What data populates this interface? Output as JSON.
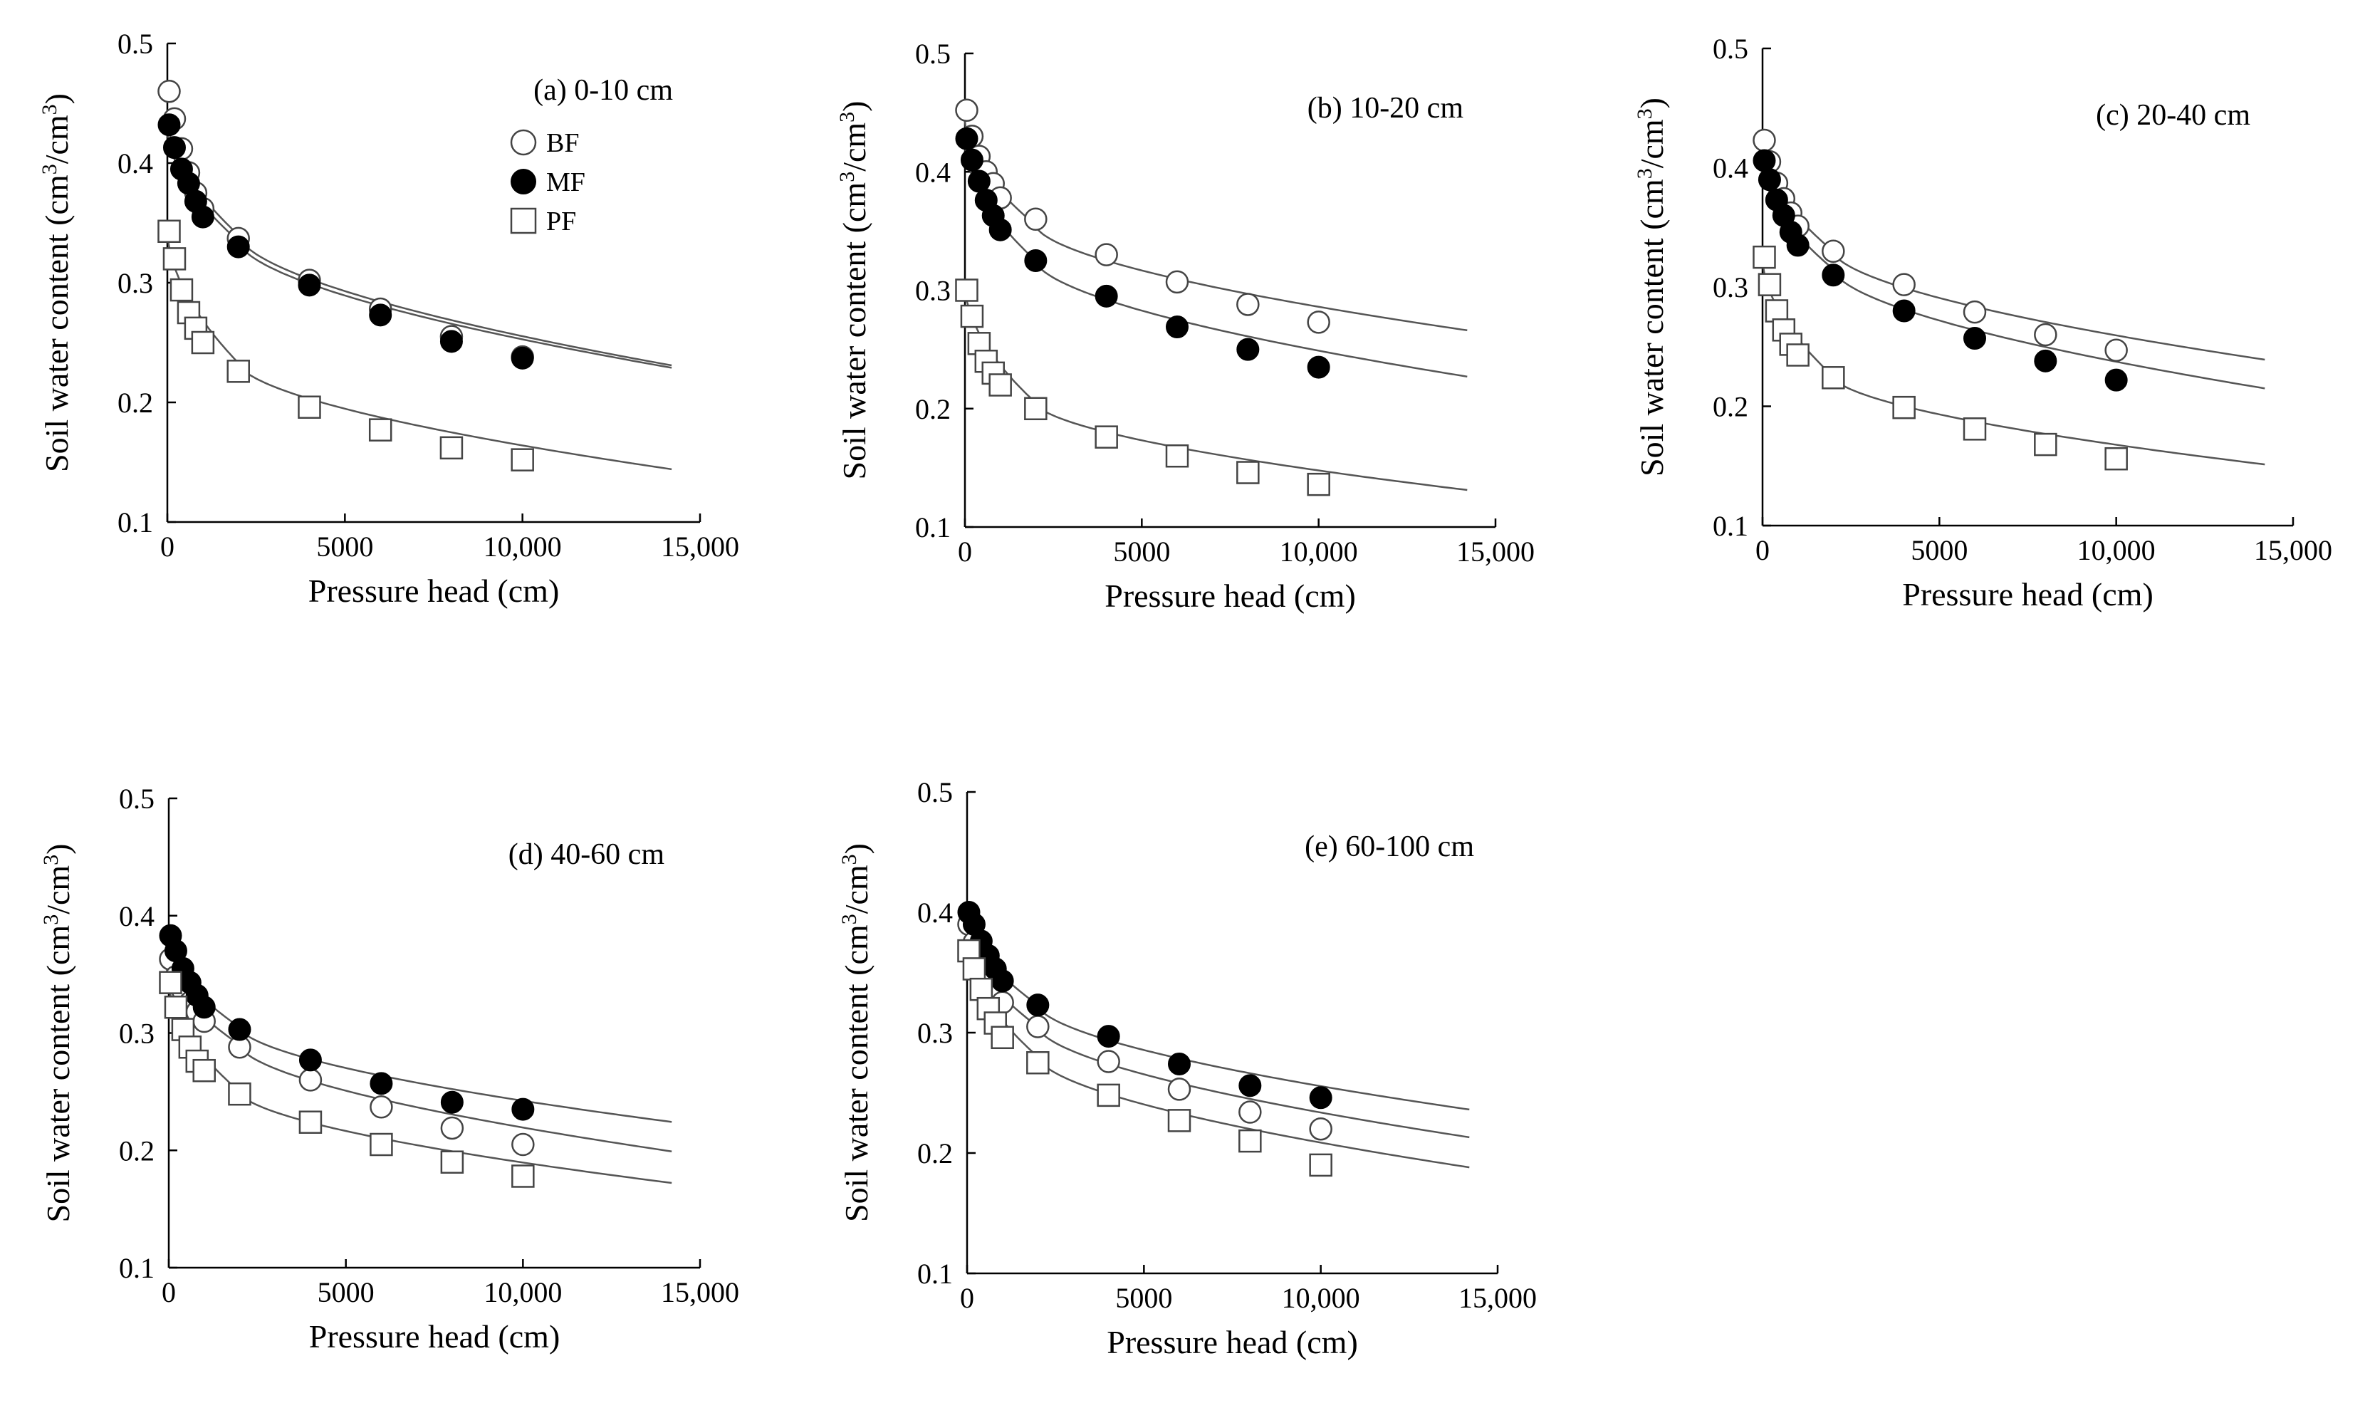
{
  "chart_data": [
    {
      "type": "scatter",
      "panel_label": "(a) 0-10 cm",
      "xlabel": "Pressure head (cm)",
      "ylabel_parts": [
        "Soil water content (cm",
        "3",
        "/cm",
        "3",
        ")"
      ],
      "xlim": [
        0,
        15000
      ],
      "ylim": [
        0.1,
        0.5
      ],
      "xticks": [
        0,
        5000,
        10000,
        15000
      ],
      "xtick_labels": [
        "0",
        "5000",
        "10,000",
        "15,000"
      ],
      "yticks": [
        0.1,
        0.2,
        0.3,
        0.4,
        0.5
      ],
      "ytick_labels": [
        "0.1",
        "0.2",
        "0.3",
        "0.4",
        "0.5"
      ],
      "legend": [
        {
          "name": "BF",
          "marker": "open-circle"
        },
        {
          "name": "MF",
          "marker": "filled-circle"
        },
        {
          "name": "PF",
          "marker": "open-square"
        }
      ],
      "series": [
        {
          "name": "BF",
          "marker": "open-circle",
          "x": [
            50,
            200,
            400,
            600,
            800,
            1000,
            2000,
            4000,
            6000,
            8000,
            10000
          ],
          "y": [
            0.46,
            0.437,
            0.412,
            0.392,
            0.375,
            0.362,
            0.337,
            0.302,
            0.278,
            0.255,
            0.238
          ],
          "fit": [
            0.44,
            0.34,
            0.232
          ]
        },
        {
          "name": "MF",
          "marker": "filled-circle",
          "x": [
            50,
            200,
            400,
            600,
            800,
            1000,
            2000,
            4000,
            6000,
            8000,
            10000
          ],
          "y": [
            0.432,
            0.413,
            0.395,
            0.383,
            0.368,
            0.355,
            0.33,
            0.298,
            0.273,
            0.251,
            0.237
          ],
          "fit": [
            0.43,
            0.335,
            0.23
          ]
        },
        {
          "name": "PF",
          "marker": "open-square",
          "x": [
            50,
            200,
            400,
            600,
            800,
            1000,
            2000,
            4000,
            6000,
            8000,
            10000
          ],
          "y": [
            0.343,
            0.32,
            0.294,
            0.275,
            0.262,
            0.25,
            0.226,
            0.196,
            0.177,
            0.162,
            0.152
          ],
          "fit": [
            0.345,
            0.233,
            0.145
          ]
        }
      ]
    },
    {
      "type": "scatter",
      "panel_label": "(b) 10-20 cm",
      "xlabel": "Pressure head (cm)",
      "ylabel_parts": [
        "Soil water content (cm",
        "3",
        "/cm",
        "3",
        ")"
      ],
      "xlim": [
        0,
        15000
      ],
      "ylim": [
        0.1,
        0.5
      ],
      "xticks": [
        0,
        5000,
        10000,
        15000
      ],
      "xtick_labels": [
        "0",
        "5000",
        "10,000",
        "15,000"
      ],
      "yticks": [
        0.1,
        0.2,
        0.3,
        0.4,
        0.5
      ],
      "ytick_labels": [
        "0.1",
        "0.2",
        "0.3",
        "0.4",
        "0.5"
      ],
      "legend": [],
      "series": [
        {
          "name": "BF",
          "marker": "open-circle",
          "x": [
            50,
            200,
            400,
            600,
            800,
            1000,
            2000,
            4000,
            6000,
            8000,
            10000
          ],
          "y": [
            0.452,
            0.43,
            0.413,
            0.4,
            0.39,
            0.378,
            0.36,
            0.33,
            0.307,
            0.288,
            0.273
          ],
          "fit": [
            0.445,
            0.355,
            0.267
          ]
        },
        {
          "name": "MF",
          "marker": "filled-circle",
          "x": [
            50,
            200,
            400,
            600,
            800,
            1000,
            2000,
            4000,
            6000,
            8000,
            10000
          ],
          "y": [
            0.428,
            0.41,
            0.392,
            0.376,
            0.363,
            0.351,
            0.325,
            0.295,
            0.269,
            0.25,
            0.235
          ],
          "fit": [
            0.425,
            0.325,
            0.228
          ]
        },
        {
          "name": "PF",
          "marker": "open-square",
          "x": [
            50,
            200,
            400,
            600,
            800,
            1000,
            2000,
            4000,
            6000,
            8000,
            10000
          ],
          "y": [
            0.3,
            0.278,
            0.255,
            0.24,
            0.23,
            0.22,
            0.2,
            0.176,
            0.16,
            0.146,
            0.136
          ],
          "fit": [
            0.305,
            0.205,
            0.132
          ]
        }
      ]
    },
    {
      "type": "scatter",
      "panel_label": "(c) 20-40 cm",
      "xlabel": "Pressure head (cm)",
      "ylabel_parts": [
        "Soil water content (cm",
        "3",
        "/cm",
        "3",
        ")"
      ],
      "xlim": [
        0,
        15000
      ],
      "ylim": [
        0.1,
        0.5
      ],
      "xticks": [
        0,
        5000,
        10000,
        15000
      ],
      "xtick_labels": [
        "0",
        "5000",
        "10,000",
        "15,000"
      ],
      "yticks": [
        0.1,
        0.2,
        0.3,
        0.4,
        0.5
      ],
      "ytick_labels": [
        "0.1",
        "0.2",
        "0.3",
        "0.4",
        "0.5"
      ],
      "legend": [],
      "series": [
        {
          "name": "BF",
          "marker": "open-circle",
          "x": [
            50,
            200,
            400,
            600,
            800,
            1000,
            2000,
            4000,
            6000,
            8000,
            10000
          ],
          "y": [
            0.423,
            0.405,
            0.387,
            0.374,
            0.362,
            0.351,
            0.33,
            0.302,
            0.279,
            0.26,
            0.247
          ],
          "fit": [
            0.42,
            0.33,
            0.24
          ]
        },
        {
          "name": "MF",
          "marker": "filled-circle",
          "x": [
            50,
            200,
            400,
            600,
            800,
            1000,
            2000,
            4000,
            6000,
            8000,
            10000
          ],
          "y": [
            0.406,
            0.39,
            0.373,
            0.36,
            0.346,
            0.335,
            0.31,
            0.28,
            0.257,
            0.238,
            0.222
          ],
          "fit": [
            0.405,
            0.315,
            0.216
          ]
        },
        {
          "name": "PF",
          "marker": "open-square",
          "x": [
            50,
            200,
            400,
            600,
            800,
            1000,
            2000,
            4000,
            6000,
            8000,
            10000
          ],
          "y": [
            0.325,
            0.302,
            0.28,
            0.264,
            0.252,
            0.243,
            0.224,
            0.199,
            0.181,
            0.168,
            0.156
          ],
          "fit": [
            0.325,
            0.225,
            0.152
          ]
        }
      ]
    },
    {
      "type": "scatter",
      "panel_label": "(d) 40-60 cm",
      "xlabel": "Pressure head (cm)",
      "ylabel_parts": [
        "Soil water content (cm",
        "3",
        "/cm",
        "3",
        ")"
      ],
      "xlim": [
        0,
        15000
      ],
      "ylim": [
        0.1,
        0.5
      ],
      "xticks": [
        0,
        5000,
        10000,
        15000
      ],
      "xtick_labels": [
        "0",
        "5000",
        "10,000",
        "15,000"
      ],
      "yticks": [
        0.1,
        0.2,
        0.3,
        0.4,
        0.5
      ],
      "ytick_labels": [
        "0.1",
        "0.2",
        "0.3",
        "0.4",
        "0.5"
      ],
      "legend": [],
      "series": [
        {
          "name": "BF",
          "marker": "open-circle",
          "x": [
            50,
            200,
            400,
            600,
            800,
            1000,
            2000,
            4000,
            6000,
            8000,
            10000
          ],
          "y": [
            0.363,
            0.348,
            0.336,
            0.326,
            0.318,
            0.31,
            0.288,
            0.26,
            0.237,
            0.219,
            0.205
          ],
          "fit": [
            0.365,
            0.29,
            0.2
          ]
        },
        {
          "name": "MF",
          "marker": "filled-circle",
          "x": [
            50,
            200,
            400,
            600,
            800,
            1000,
            2000,
            4000,
            6000,
            8000,
            10000
          ],
          "y": [
            0.383,
            0.37,
            0.355,
            0.343,
            0.332,
            0.322,
            0.303,
            0.277,
            0.257,
            0.241,
            0.235
          ],
          "fit": [
            0.38,
            0.305,
            0.225
          ]
        },
        {
          "name": "PF",
          "marker": "open-square",
          "x": [
            50,
            200,
            400,
            600,
            800,
            1000,
            2000,
            4000,
            6000,
            8000,
            10000
          ],
          "y": [
            0.343,
            0.322,
            0.303,
            0.288,
            0.276,
            0.268,
            0.248,
            0.224,
            0.205,
            0.19,
            0.178
          ],
          "fit": [
            0.345,
            0.25,
            0.173
          ]
        }
      ]
    },
    {
      "type": "scatter",
      "panel_label": "(e) 60-100 cm",
      "xlabel": "Pressure head (cm)",
      "ylabel_parts": [
        "Soil water content (cm",
        "3",
        "/cm",
        "3",
        ")"
      ],
      "xlim": [
        0,
        15000
      ],
      "ylim": [
        0.1,
        0.5
      ],
      "xticks": [
        0,
        5000,
        10000,
        15000
      ],
      "xtick_labels": [
        "0",
        "5000",
        "10,000",
        "15,000"
      ],
      "yticks": [
        0.1,
        0.2,
        0.3,
        0.4,
        0.5
      ],
      "ytick_labels": [
        "0.1",
        "0.2",
        "0.3",
        "0.4",
        "0.5"
      ],
      "legend": [],
      "series": [
        {
          "name": "BF",
          "marker": "open-circle",
          "x": [
            50,
            200,
            400,
            600,
            800,
            1000,
            2000,
            4000,
            6000,
            8000,
            10000
          ],
          "y": [
            0.39,
            0.375,
            0.36,
            0.348,
            0.336,
            0.325,
            0.305,
            0.276,
            0.253,
            0.234,
            0.22
          ],
          "fit": [
            0.385,
            0.305,
            0.214
          ]
        },
        {
          "name": "MF",
          "marker": "filled-circle",
          "x": [
            50,
            200,
            400,
            600,
            800,
            1000,
            2000,
            4000,
            6000,
            8000,
            10000
          ],
          "y": [
            0.4,
            0.39,
            0.376,
            0.364,
            0.353,
            0.343,
            0.323,
            0.297,
            0.274,
            0.256,
            0.246
          ],
          "fit": [
            0.4,
            0.323,
            0.237
          ]
        },
        {
          "name": "PF",
          "marker": "open-square",
          "x": [
            50,
            200,
            400,
            600,
            800,
            1000,
            2000,
            4000,
            6000,
            8000,
            10000
          ],
          "y": [
            0.368,
            0.353,
            0.336,
            0.32,
            0.308,
            0.296,
            0.275,
            0.248,
            0.227,
            0.21,
            0.19
          ],
          "fit": [
            0.375,
            0.28,
            0.189
          ]
        }
      ]
    }
  ]
}
